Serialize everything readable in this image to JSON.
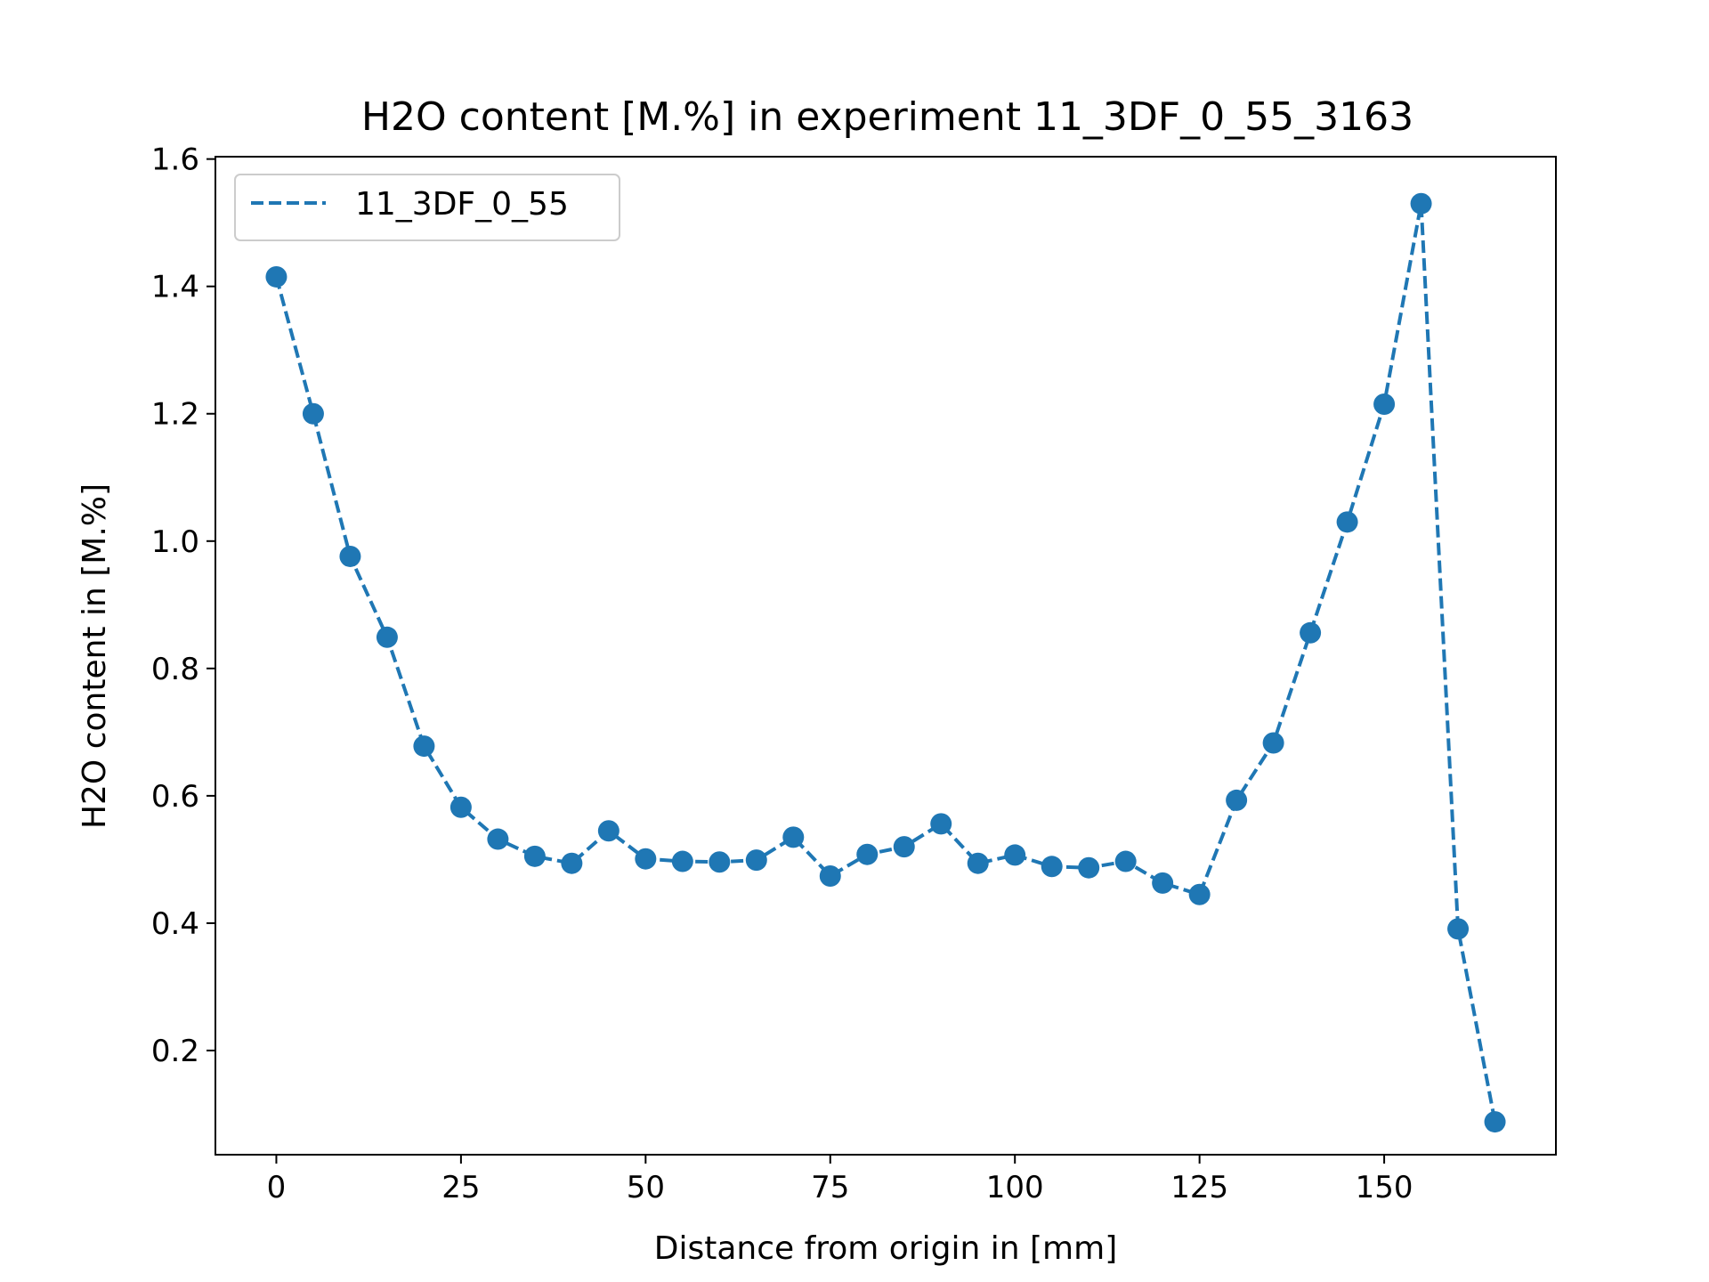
{
  "chart_data": {
    "type": "line",
    "title": "H2O content [M.%] in experiment 11_3DF_0_55_3163",
    "xlabel": "Distance from origin in [mm]",
    "ylabel": "H2O content in [M.%]",
    "xlim": [
      -8.25,
      173.25
    ],
    "ylim": [
      0.0364,
      1.6037
    ],
    "xticks": [
      0,
      25,
      50,
      75,
      100,
      125,
      150
    ],
    "xtick_labels": [
      "0",
      "25",
      "50",
      "75",
      "100",
      "125",
      "150"
    ],
    "yticks": [
      0.2,
      0.4,
      0.6,
      0.8,
      1.0,
      1.2,
      1.4,
      1.6
    ],
    "ytick_labels": [
      "0.2",
      "0.4",
      "0.6",
      "0.8",
      "1.0",
      "1.2",
      "1.4",
      "1.6"
    ],
    "grid": false,
    "legend": {
      "position": "top-left"
    },
    "series": [
      {
        "name": "11_3DF_0_55",
        "color": "#1f77b4",
        "line_style": "dashed",
        "marker": "circle",
        "x": [
          0,
          5,
          10,
          15,
          20,
          25,
          30,
          35,
          40,
          45,
          50,
          55,
          60,
          65,
          70,
          75,
          80,
          85,
          90,
          95,
          100,
          105,
          110,
          115,
          120,
          125,
          130,
          135,
          140,
          145,
          150,
          155,
          160,
          165
        ],
        "y": [
          1.415,
          1.2,
          0.976,
          0.849,
          0.678,
          0.582,
          0.532,
          0.505,
          0.494,
          0.545,
          0.501,
          0.497,
          0.496,
          0.499,
          0.535,
          0.474,
          0.508,
          0.52,
          0.556,
          0.494,
          0.507,
          0.489,
          0.487,
          0.497,
          0.463,
          0.445,
          0.593,
          0.683,
          0.856,
          1.03,
          1.215,
          1.53,
          0.391,
          0.088
        ]
      }
    ]
  }
}
